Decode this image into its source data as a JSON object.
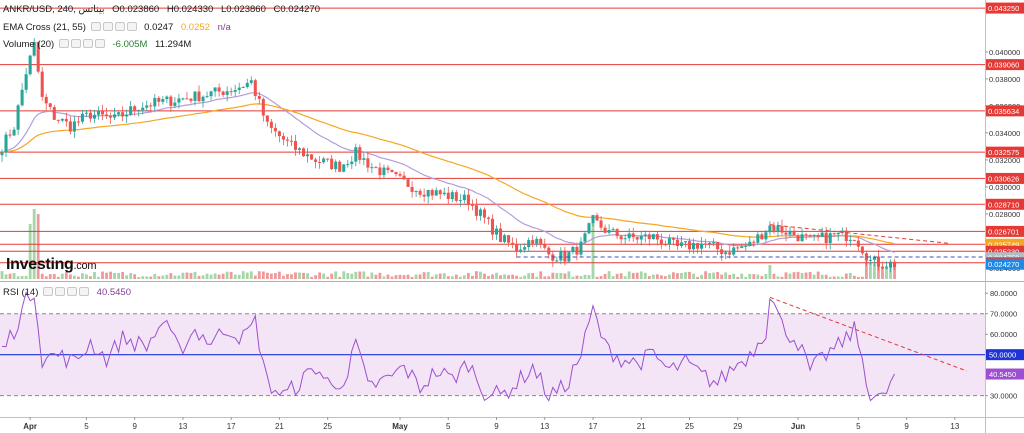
{
  "legend": {
    "symbol": "ANKR/USD, 240, بيناتس",
    "ohlc": {
      "o": "O0.023860",
      "h": "H0.024330",
      "l": "L0.023860",
      "c": "C0.024270"
    },
    "ema": {
      "label": "EMA Cross (21, 55)",
      "v1": "0.0247",
      "v2": "0.0252",
      "v3": "n/a"
    },
    "volume": {
      "label": "Volume (20)",
      "v1": "-6.005M",
      "v2": "11.294M"
    },
    "rsi": {
      "label": "RSI (14)",
      "value": "40.5450"
    }
  },
  "logo": {
    "main": "Investing",
    "suffix": ".com"
  },
  "colors": {
    "up": "#26a69a",
    "down": "#ef5350",
    "ema_fast": "#b39ddb",
    "ema_slow": "#f5a623",
    "resistance": "#e53935",
    "rsi_line": "#9c4fd0",
    "rsi_band": "#f3e5f5",
    "mid_line": "#1e34d9",
    "volume_up": "#a5d6a7",
    "volume_down": "#ef9a9a"
  },
  "chart_data": [
    {
      "type": "candlestick",
      "title": "ANKR/USD, 240",
      "x_ticks": [
        "Apr",
        "5",
        "9",
        "13",
        "17",
        "21",
        "25",
        "May",
        "5",
        "9",
        "13",
        "17",
        "21",
        "25",
        "29",
        "Jun",
        "5",
        "9",
        "13"
      ],
      "y_ticks": [
        "0.040000",
        "0.038000",
        "0.036000",
        "0.034000",
        "0.032000",
        "0.030000",
        "0.028000",
        "0.026000",
        "0.024000"
      ],
      "ylim": [
        0.0231,
        0.0437
      ],
      "close_path": [
        {
          "x": 0,
          "y": 0.033
        },
        {
          "x": 3,
          "y": 0.0345
        },
        {
          "x": 6,
          "y": 0.0385
        },
        {
          "x": 8,
          "y": 0.0405
        },
        {
          "x": 10,
          "y": 0.0365
        },
        {
          "x": 13,
          "y": 0.0352
        },
        {
          "x": 17,
          "y": 0.0345
        },
        {
          "x": 22,
          "y": 0.0354
        },
        {
          "x": 28,
          "y": 0.035
        },
        {
          "x": 34,
          "y": 0.036
        },
        {
          "x": 42,
          "y": 0.0364
        },
        {
          "x": 50,
          "y": 0.0368
        },
        {
          "x": 58,
          "y": 0.0373
        },
        {
          "x": 62,
          "y": 0.0378
        },
        {
          "x": 66,
          "y": 0.0345
        },
        {
          "x": 72,
          "y": 0.033
        },
        {
          "x": 78,
          "y": 0.032
        },
        {
          "x": 84,
          "y": 0.0315
        },
        {
          "x": 88,
          "y": 0.0325
        },
        {
          "x": 92,
          "y": 0.0315
        },
        {
          "x": 98,
          "y": 0.0306
        },
        {
          "x": 104,
          "y": 0.0298
        },
        {
          "x": 110,
          "y": 0.0294
        },
        {
          "x": 116,
          "y": 0.029
        },
        {
          "x": 120,
          "y": 0.0276
        },
        {
          "x": 124,
          "y": 0.0262
        },
        {
          "x": 128,
          "y": 0.0254
        },
        {
          "x": 132,
          "y": 0.0262
        },
        {
          "x": 136,
          "y": 0.025
        },
        {
          "x": 140,
          "y": 0.0248
        },
        {
          "x": 144,
          "y": 0.0256
        },
        {
          "x": 147,
          "y": 0.0275
        },
        {
          "x": 151,
          "y": 0.0266
        },
        {
          "x": 156,
          "y": 0.0262
        },
        {
          "x": 162,
          "y": 0.0263
        },
        {
          "x": 168,
          "y": 0.0255
        },
        {
          "x": 174,
          "y": 0.0258
        },
        {
          "x": 180,
          "y": 0.0252
        },
        {
          "x": 186,
          "y": 0.0257
        },
        {
          "x": 191,
          "y": 0.0271
        },
        {
          "x": 196,
          "y": 0.0266
        },
        {
          "x": 201,
          "y": 0.026
        },
        {
          "x": 207,
          "y": 0.0264
        },
        {
          "x": 212,
          "y": 0.0264
        },
        {
          "x": 216,
          "y": 0.0245
        },
        {
          "x": 219,
          "y": 0.0243
        }
      ],
      "series": [
        {
          "name": "EMA Cross (21, 55)"
        },
        {
          "name": "Volume (20)"
        }
      ],
      "horizontal_levels": [
        "0.043250",
        "0.039060",
        "0.035634",
        "0.032575",
        "0.030626",
        "0.028710",
        "0.026701",
        "0.025749",
        "0.025230",
        "0.024750",
        "0.024376",
        "0.024270"
      ],
      "support_dashed": 0.0248,
      "trendline_dashed": {
        "start": [
          191,
          0.0272
        ],
        "end": [
          236,
          0.0258
        ]
      }
    },
    {
      "type": "line",
      "title": "RSI (14)",
      "y_ticks": [
        "80.0000",
        "70.0000",
        "60.0000",
        "50.0000",
        "40.0000",
        "30.0000"
      ],
      "ylim": [
        22,
        85
      ],
      "band": [
        30,
        70
      ],
      "midline": 50,
      "current": 40.545,
      "values_path": [
        {
          "x": 0,
          "y": 52
        },
        {
          "x": 3,
          "y": 62
        },
        {
          "x": 6,
          "y": 76
        },
        {
          "x": 8,
          "y": 82
        },
        {
          "x": 10,
          "y": 48
        },
        {
          "x": 14,
          "y": 50
        },
        {
          "x": 18,
          "y": 46
        },
        {
          "x": 22,
          "y": 56
        },
        {
          "x": 26,
          "y": 48
        },
        {
          "x": 30,
          "y": 58
        },
        {
          "x": 36,
          "y": 54
        },
        {
          "x": 40,
          "y": 66
        },
        {
          "x": 44,
          "y": 52
        },
        {
          "x": 48,
          "y": 62
        },
        {
          "x": 52,
          "y": 56
        },
        {
          "x": 56,
          "y": 63
        },
        {
          "x": 60,
          "y": 58
        },
        {
          "x": 63,
          "y": 66
        },
        {
          "x": 66,
          "y": 36
        },
        {
          "x": 70,
          "y": 30
        },
        {
          "x": 74,
          "y": 36
        },
        {
          "x": 78,
          "y": 44
        },
        {
          "x": 82,
          "y": 34
        },
        {
          "x": 86,
          "y": 40
        },
        {
          "x": 88,
          "y": 56
        },
        {
          "x": 91,
          "y": 34
        },
        {
          "x": 96,
          "y": 38
        },
        {
          "x": 100,
          "y": 44
        },
        {
          "x": 104,
          "y": 34
        },
        {
          "x": 108,
          "y": 42
        },
        {
          "x": 112,
          "y": 38
        },
        {
          "x": 116,
          "y": 46
        },
        {
          "x": 120,
          "y": 32
        },
        {
          "x": 124,
          "y": 30
        },
        {
          "x": 128,
          "y": 36
        },
        {
          "x": 132,
          "y": 44
        },
        {
          "x": 136,
          "y": 30
        },
        {
          "x": 140,
          "y": 34
        },
        {
          "x": 144,
          "y": 50
        },
        {
          "x": 147,
          "y": 72
        },
        {
          "x": 150,
          "y": 54
        },
        {
          "x": 154,
          "y": 48
        },
        {
          "x": 158,
          "y": 46
        },
        {
          "x": 162,
          "y": 50
        },
        {
          "x": 166,
          "y": 42
        },
        {
          "x": 170,
          "y": 46
        },
        {
          "x": 174,
          "y": 40
        },
        {
          "x": 178,
          "y": 36
        },
        {
          "x": 182,
          "y": 44
        },
        {
          "x": 186,
          "y": 50
        },
        {
          "x": 190,
          "y": 62
        },
        {
          "x": 191,
          "y": 80
        },
        {
          "x": 194,
          "y": 64
        },
        {
          "x": 198,
          "y": 56
        },
        {
          "x": 201,
          "y": 42
        },
        {
          "x": 205,
          "y": 50
        },
        {
          "x": 208,
          "y": 54
        },
        {
          "x": 212,
          "y": 62
        },
        {
          "x": 214,
          "y": 48
        },
        {
          "x": 216,
          "y": 30
        },
        {
          "x": 219,
          "y": 28
        },
        {
          "x": 222,
          "y": 40.5
        }
      ],
      "trendline_dashed": {
        "start": [
          191,
          78
        ],
        "end": [
          240,
          42
        ]
      }
    }
  ]
}
